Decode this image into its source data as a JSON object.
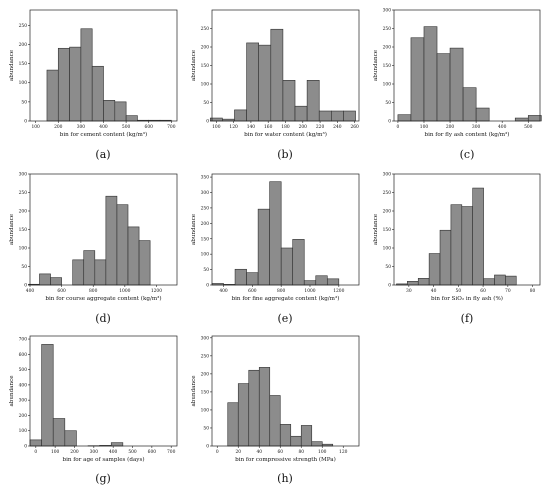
{
  "colors": {
    "bar_fill": "#8c8c8c",
    "bar_stroke": "#2e2e2e",
    "axis": "#222222"
  },
  "chart_data": [
    {
      "type": "bar",
      "letter": "(a)",
      "xlabel": "bin for cement content (kg/m³)",
      "ylabel": "abundance",
      "xlim": [
        75,
        725
      ],
      "ylim": [
        0,
        290
      ],
      "xticks": [
        100,
        200,
        300,
        400,
        500,
        600,
        700
      ],
      "xtick_labels": [
        "100",
        "200",
        "300",
        "400",
        "500",
        "600",
        "700"
      ],
      "yticks": [
        0,
        50,
        100,
        150,
        200,
        250
      ],
      "ytick_labels": [
        "0",
        "50",
        "100",
        "150",
        "200",
        "250"
      ],
      "bin_width": 50,
      "x": [
        125,
        175,
        225,
        275,
        325,
        375,
        425,
        475,
        525,
        575,
        625,
        675
      ],
      "values": [
        0,
        133,
        190,
        193,
        241,
        143,
        54,
        50,
        14,
        2,
        2,
        2
      ]
    },
    {
      "type": "bar",
      "letter": "(b)",
      "xlabel": "bin for water content (kg/m³)",
      "ylabel": "abundance",
      "xlim": [
        95,
        265
      ],
      "ylim": [
        0,
        300
      ],
      "xticks": [
        100,
        120,
        140,
        160,
        180,
        200,
        220,
        240,
        260
      ],
      "xtick_labels": [
        "100",
        "120",
        "140",
        "160",
        "180",
        "200",
        "220",
        "240",
        "260"
      ],
      "yticks": [
        0,
        50,
        100,
        150,
        200,
        250
      ],
      "ytick_labels": [
        "0",
        "50",
        "100",
        "150",
        "200",
        "250"
      ],
      "bin_width": 14,
      "x": [
        100,
        114,
        128,
        142,
        156,
        170,
        184,
        198,
        212,
        226,
        240,
        254
      ],
      "values": [
        8,
        5,
        30,
        211,
        205,
        248,
        110,
        40,
        110,
        27,
        27,
        27
      ]
    },
    {
      "type": "bar",
      "letter": "(c)",
      "xlabel": "bin for fly ash content (kg/m³)",
      "ylabel": "abundance",
      "xlim": [
        -15,
        545
      ],
      "ylim": [
        0,
        300
      ],
      "xticks": [
        0,
        100,
        200,
        300,
        400,
        500
      ],
      "xtick_labels": [
        "0",
        "100",
        "200",
        "300",
        "400",
        "500"
      ],
      "yticks": [
        0,
        50,
        100,
        150,
        200,
        250,
        300
      ],
      "ytick_labels": [
        "0",
        "50",
        "100",
        "150",
        "200",
        "250",
        "300"
      ],
      "bin_width": 50,
      "x": [
        25,
        75,
        125,
        175,
        225,
        275,
        325,
        375,
        425,
        475,
        525
      ],
      "values": [
        17,
        225,
        255,
        182,
        197,
        90,
        35,
        0,
        0,
        8,
        15
      ]
    },
    {
      "type": "bar",
      "letter": "(d)",
      "xlabel": "bin for course aggregate content (kg/m³)",
      "ylabel": "abundance",
      "xlim": [
        400,
        1330
      ],
      "ylim": [
        0,
        300
      ],
      "xticks": [
        400,
        600,
        800,
        1000,
        1200
      ],
      "xtick_labels": [
        "400",
        "600",
        "800",
        "1000",
        "1200"
      ],
      "yticks": [
        0,
        50,
        100,
        150,
        200,
        250,
        300
      ],
      "ytick_labels": [
        "0",
        "50",
        "100",
        "150",
        "200",
        "250",
        "300"
      ],
      "bin_width": 70,
      "x": [
        425,
        495,
        565,
        635,
        705,
        775,
        845,
        915,
        985,
        1055,
        1125,
        1195,
        1265
      ],
      "values": [
        2,
        30,
        20,
        0,
        68,
        93,
        68,
        240,
        217,
        157,
        120,
        0,
        0
      ]
    },
    {
      "type": "bar",
      "letter": "(e)",
      "xlabel": "bin for fine aggregate content (kg/m³)",
      "ylabel": "abundance",
      "xlim": [
        320,
        1340
      ],
      "ylim": [
        0,
        360
      ],
      "xticks": [
        400,
        600,
        800,
        1000,
        1200
      ],
      "xtick_labels": [
        "400",
        "600",
        "800",
        "1000",
        "1200"
      ],
      "yticks": [
        0,
        50,
        100,
        150,
        200,
        250,
        300,
        350
      ],
      "ytick_labels": [
        "0",
        "50",
        "100",
        "150",
        "200",
        "250",
        "300",
        "350"
      ],
      "bin_width": 80,
      "x": [
        360,
        440,
        520,
        600,
        680,
        760,
        840,
        920,
        1000,
        1080,
        1160,
        1240
      ],
      "values": [
        5,
        2,
        51,
        40,
        246,
        335,
        120,
        148,
        14,
        30,
        20,
        0
      ]
    },
    {
      "type": "bar",
      "letter": "(f)",
      "xlabel": "bin for SiO₂ in fly ash (%)",
      "ylabel": "abundance",
      "xlim": [
        24,
        83
      ],
      "ylim": [
        0,
        300
      ],
      "xticks": [
        30,
        40,
        50,
        60,
        70,
        80
      ],
      "xtick_labels": [
        "30",
        "40",
        "50",
        "60",
        "70",
        "80"
      ],
      "yticks": [
        0,
        50,
        100,
        150,
        200,
        250,
        300
      ],
      "ytick_labels": [
        "0",
        "50",
        "100",
        "150",
        "200",
        "250",
        "300"
      ],
      "bin_width": 4.4,
      "x": [
        27.2,
        31.6,
        36.0,
        40.4,
        44.8,
        49.2,
        53.6,
        58.0,
        62.4,
        66.8,
        71.2,
        75.6,
        80.0
      ],
      "values": [
        3,
        10,
        18,
        85,
        148,
        217,
        212,
        262,
        17,
        27,
        24,
        0,
        0
      ]
    },
    {
      "type": "bar",
      "letter": "(g)",
      "xlabel": "bin for age of samples (days)",
      "ylabel": "abundance",
      "xlim": [
        -30,
        730
      ],
      "ylim": [
        0,
        720
      ],
      "xticks": [
        0,
        100,
        200,
        300,
        400,
        500,
        600,
        700
      ],
      "xtick_labels": [
        "0",
        "100",
        "200",
        "300",
        "400",
        "500",
        "600",
        "700"
      ],
      "yticks": [
        0,
        100,
        200,
        300,
        400,
        500,
        600,
        700
      ],
      "ytick_labels": [
        "0",
        "100",
        "200",
        "300",
        "400",
        "500",
        "600",
        "700"
      ],
      "bin_width": 60,
      "x": [
        0,
        60,
        120,
        180,
        240,
        300,
        360,
        420,
        480,
        540,
        600,
        660
      ],
      "values": [
        40,
        665,
        180,
        100,
        0,
        2,
        4,
        22,
        0,
        0,
        0,
        0
      ]
    },
    {
      "type": "bar",
      "letter": "(h)",
      "xlabel": "bin for compressive strength (MPa)",
      "ylabel": "abundance",
      "xlim": [
        -5,
        135
      ],
      "ylim": [
        0,
        305
      ],
      "xticks": [
        0,
        20,
        40,
        60,
        80,
        100,
        120
      ],
      "xtick_labels": [
        "0",
        "20",
        "40",
        "60",
        "80",
        "100",
        "120"
      ],
      "yticks": [
        0,
        50,
        100,
        150,
        200,
        250,
        300
      ],
      "ytick_labels": [
        "0",
        "50",
        "100",
        "150",
        "200",
        "250",
        "300"
      ],
      "bin_width": 10,
      "x": [
        5,
        15,
        25,
        35,
        45,
        55,
        65,
        75,
        85,
        95,
        105,
        115,
        125
      ],
      "values": [
        0,
        120,
        173,
        210,
        218,
        140,
        60,
        27,
        57,
        12,
        5,
        0,
        0
      ]
    }
  ]
}
